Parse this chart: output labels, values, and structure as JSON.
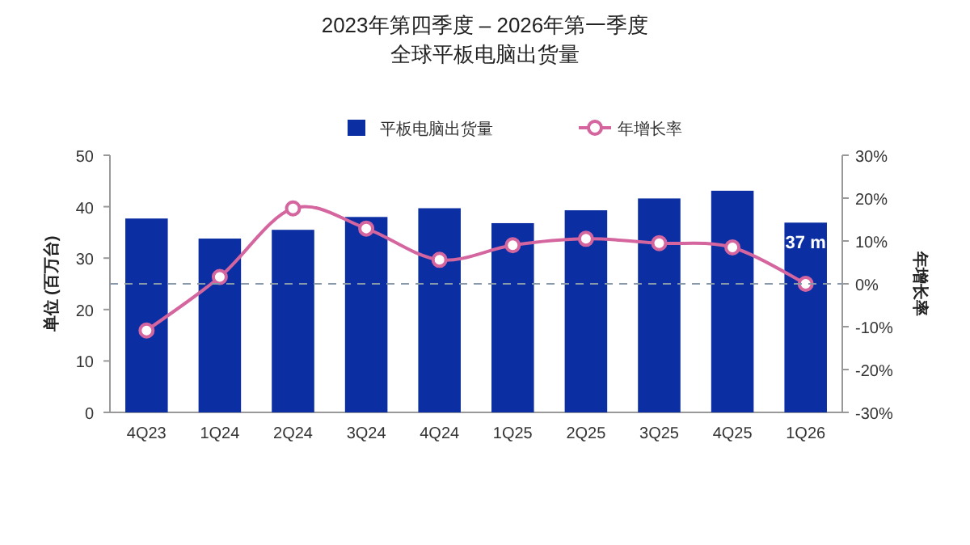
{
  "chart_data": {
    "type": "bar",
    "title": "2023年第四季度 – 2026年第一季度",
    "subtitle": "全球平板电脑出货量",
    "ylabel": "单位 (百万台)",
    "y2label": "年增长率",
    "categories": [
      "4Q23",
      "1Q24",
      "2Q24",
      "3Q24",
      "4Q24",
      "1Q25",
      "2Q25",
      "3Q25",
      "4Q25",
      "1Q26"
    ],
    "series": [
      {
        "name": "平板电脑出货量",
        "color": "#0b2fa3",
        "values": [
          37.7,
          33.8,
          35.5,
          38,
          39.7,
          36.8,
          39.3,
          41.6,
          43.1,
          36.9
        ],
        "value_labels": [
          null,
          null,
          null,
          null,
          null,
          null,
          null,
          null,
          null,
          "37 m"
        ]
      },
      {
        "name": "年增长率",
        "type": "line",
        "axis": "y2",
        "color": "#d4659e",
        "marker": "circle",
        "values": [
          -10.9,
          1.6,
          17.6,
          12.9,
          5.6,
          9.0,
          10.5,
          9.5,
          8.5,
          0
        ]
      }
    ],
    "ylim": [
      0,
      50
    ],
    "yticks": [
      0,
      10,
      20,
      30,
      40,
      50
    ],
    "y2lim": [
      -30,
      30
    ],
    "y2ticks": [
      {
        "value": -30,
        "label": "-30%"
      },
      {
        "value": -20,
        "label": "-20%"
      },
      {
        "value": -10,
        "label": "-10%"
      },
      {
        "value": 0,
        "label": "0%"
      },
      {
        "value": 10,
        "label": "10%"
      },
      {
        "value": 20,
        "label": "20%"
      },
      {
        "value": 30,
        "label": "30%"
      }
    ],
    "ref_lines": [
      {
        "axis": "y2",
        "value": 0,
        "line_style": "dashed",
        "color": "#8899aa"
      }
    ],
    "legend": "top"
  }
}
